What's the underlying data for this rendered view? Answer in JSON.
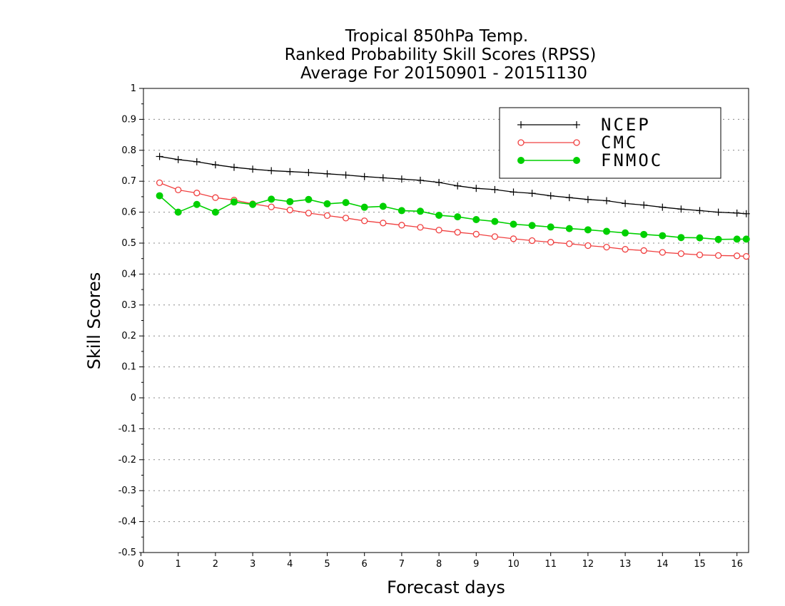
{
  "chart_data": {
    "type": "line",
    "title": [
      "Tropical 850hPa Temp.",
      "Ranked Probability Skill Scores (RPSS)",
      "Average For 20150901 - 20151130"
    ],
    "xlabel": "Forecast days",
    "ylabel": "Skill Scores",
    "xlim": [
      0,
      16.25
    ],
    "ylim": [
      -0.5,
      1
    ],
    "x_ticks": [
      0,
      1,
      2,
      3,
      4,
      5,
      6,
      7,
      8,
      9,
      10,
      11,
      12,
      13,
      14,
      15,
      16
    ],
    "y_ticks": [
      -0.5,
      -0.4,
      -0.3,
      -0.2,
      -0.1,
      0,
      0.1,
      0.2,
      0.3,
      0.4,
      0.5,
      0.6,
      0.7,
      0.8,
      0.9,
      1
    ],
    "y_tick_labels": [
      "-0.5",
      "-0.4",
      "-0.3",
      "-0.2",
      "-0.1",
      "0",
      "0.1",
      "0.2",
      "0.3",
      "0.4",
      "0.5",
      "0.6",
      "0.7",
      "0.8",
      "0.9",
      "1"
    ],
    "grid": "horizontal-dotted",
    "legend_position": "top-right",
    "x": [
      0.5,
      1,
      1.5,
      2,
      2.5,
      3,
      3.5,
      4,
      4.5,
      5,
      5.5,
      6,
      6.5,
      7,
      7.5,
      8,
      8.5,
      9,
      9.5,
      10,
      10.5,
      11,
      11.5,
      12,
      12.5,
      13,
      13.5,
      14,
      14.5,
      15,
      15.5,
      16,
      16.25
    ],
    "series": [
      {
        "name": "NCEP",
        "color": "#000000",
        "marker": "plus",
        "values": [
          0.78,
          0.77,
          0.763,
          0.753,
          0.745,
          0.739,
          0.734,
          0.731,
          0.728,
          0.724,
          0.72,
          0.715,
          0.711,
          0.707,
          0.703,
          0.696,
          0.685,
          0.677,
          0.673,
          0.665,
          0.661,
          0.653,
          0.647,
          0.641,
          0.637,
          0.628,
          0.623,
          0.616,
          0.61,
          0.605,
          0.6,
          0.597,
          0.595
        ]
      },
      {
        "name": "CMC",
        "color": "#f04040",
        "marker": "open-circle",
        "values": [
          0.695,
          0.672,
          0.662,
          0.647,
          0.639,
          0.627,
          0.617,
          0.607,
          0.597,
          0.589,
          0.581,
          0.572,
          0.565,
          0.558,
          0.551,
          0.542,
          0.535,
          0.529,
          0.521,
          0.514,
          0.508,
          0.503,
          0.498,
          0.492,
          0.487,
          0.48,
          0.476,
          0.47,
          0.466,
          0.462,
          0.46,
          0.459,
          0.457
        ]
      },
      {
        "name": "FNMOC",
        "color": "#00d000",
        "marker": "filled-circle",
        "values": [
          0.653,
          0.6,
          0.625,
          0.6,
          0.633,
          0.625,
          0.642,
          0.634,
          0.641,
          0.627,
          0.631,
          0.616,
          0.619,
          0.605,
          0.603,
          0.59,
          0.585,
          0.576,
          0.57,
          0.561,
          0.557,
          0.552,
          0.547,
          0.543,
          0.538,
          0.533,
          0.528,
          0.524,
          0.518,
          0.517,
          0.512,
          0.513,
          0.513
        ]
      }
    ]
  }
}
